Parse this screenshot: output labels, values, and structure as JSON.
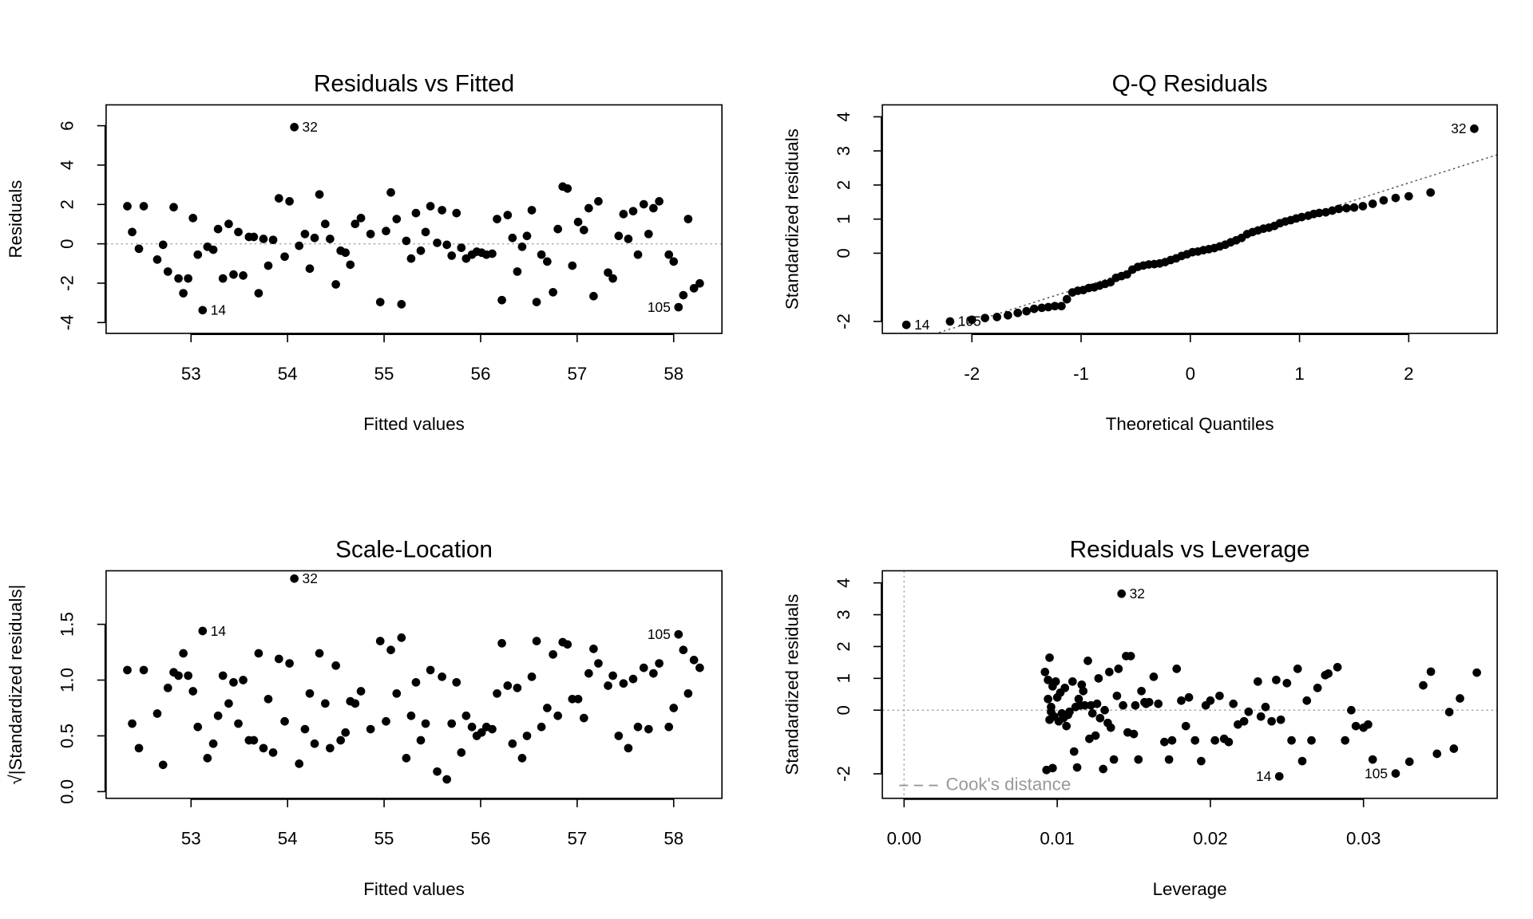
{
  "chart_data": [
    {
      "type": "scatter",
      "title": "Residuals vs Fitted",
      "x_label": "Fitted values",
      "y_label": "Residuals",
      "x": [
        52.34,
        52.39,
        52.46,
        52.51,
        52.65,
        52.71,
        52.76,
        52.82,
        52.87,
        52.92,
        52.97,
        53.02,
        53.07,
        53.12,
        53.17,
        53.23,
        53.28,
        53.33,
        53.39,
        53.44,
        53.49,
        53.54,
        53.6,
        53.65,
        53.7,
        53.75,
        53.8,
        53.85,
        53.91,
        53.97,
        54.02,
        54.07,
        54.12,
        54.18,
        54.23,
        54.28,
        54.33,
        54.39,
        54.44,
        54.5,
        54.55,
        54.6,
        54.65,
        54.7,
        54.76,
        54.86,
        54.96,
        55.02,
        55.07,
        55.13,
        55.18,
        55.23,
        55.28,
        55.33,
        55.38,
        55.43,
        55.48,
        55.55,
        55.6,
        55.65,
        55.7,
        55.75,
        55.8,
        55.85,
        55.91,
        55.96,
        56.01,
        56.06,
        56.12,
        56.17,
        56.22,
        56.28,
        56.33,
        56.38,
        56.43,
        56.48,
        56.53,
        56.58,
        56.63,
        56.69,
        56.75,
        56.8,
        56.85,
        56.9,
        56.95,
        57.01,
        57.07,
        57.12,
        57.17,
        57.22,
        57.32,
        57.37,
        57.43,
        57.48,
        57.53,
        57.58,
        57.63,
        57.69,
        57.74,
        57.79,
        57.85,
        57.95,
        58.0,
        58.05,
        58.1,
        58.15,
        58.21,
        58.27
      ],
      "y": [
        1.91,
        0.6,
        -0.25,
        1.91,
        -0.8,
        -0.05,
        -1.41,
        1.86,
        -1.76,
        -2.51,
        -1.76,
        1.31,
        -0.55,
        -3.37,
        -0.15,
        -0.3,
        0.75,
        -1.76,
        1.01,
        -1.56,
        0.6,
        -1.61,
        0.35,
        0.35,
        -2.51,
        0.25,
        -1.11,
        0.2,
        2.31,
        -0.65,
        2.16,
        5.93,
        -0.1,
        0.5,
        -1.26,
        0.3,
        2.51,
        1.01,
        0.25,
        -2.06,
        -0.35,
        -0.45,
        -1.06,
        1.01,
        1.31,
        0.5,
        -2.96,
        0.65,
        2.61,
        1.26,
        -3.07,
        0.15,
        -0.75,
        1.56,
        -0.35,
        0.6,
        1.91,
        0.05,
        1.71,
        -0.05,
        -0.6,
        1.56,
        -0.2,
        -0.75,
        -0.55,
        -0.4,
        -0.45,
        -0.55,
        -0.5,
        1.26,
        -2.86,
        1.46,
        0.3,
        -1.41,
        -0.15,
        0.4,
        1.71,
        -2.96,
        -0.55,
        -0.9,
        -2.46,
        0.75,
        2.91,
        2.81,
        -1.11,
        1.11,
        0.7,
        1.81,
        -2.66,
        2.16,
        -1.46,
        -1.76,
        0.4,
        1.51,
        0.25,
        1.66,
        -0.55,
        2.01,
        0.5,
        1.81,
        2.16,
        -0.55,
        -0.9,
        -3.22,
        -2.61,
        1.26,
        -2.26,
        -2.01
      ],
      "xlim": [
        52.12,
        58.5
      ],
      "ylim": [
        -4.55,
        7.06
      ],
      "xticks": [
        53,
        54,
        55,
        56,
        57,
        58
      ],
      "yticks": [
        -4,
        -2,
        0,
        2,
        4,
        6
      ],
      "reference_lines": [
        {
          "intercept": 0,
          "slope": 0,
          "color": "#aaaaaa"
        }
      ],
      "point_labels": [
        {
          "index": 31,
          "text": "32"
        },
        {
          "index": 13,
          "text": "14"
        },
        {
          "index": 103,
          "text": "105"
        }
      ]
    },
    {
      "type": "scatter",
      "title": "Q-Q Residuals",
      "x_label": "Theoretical Quantiles",
      "y_label": "Standardized residuals",
      "x": [
        -2.6,
        -2.2,
        -2.0,
        -1.88,
        -1.77,
        -1.67,
        -1.58,
        -1.5,
        -1.43,
        -1.36,
        -1.3,
        -1.24,
        -1.18,
        -1.13,
        -1.08,
        -1.03,
        -0.98,
        -0.93,
        -0.88,
        -0.83,
        -0.78,
        -0.73,
        -0.68,
        -0.63,
        -0.58,
        -0.53,
        -0.48,
        -0.43,
        -0.38,
        -0.33,
        -0.28,
        -0.23,
        -0.18,
        -0.13,
        -0.08,
        -0.03,
        0.02,
        0.07,
        0.12,
        0.17,
        0.22,
        0.27,
        0.32,
        0.37,
        0.42,
        0.47,
        0.52,
        0.57,
        0.62,
        0.67,
        0.72,
        0.77,
        0.82,
        0.87,
        0.92,
        0.97,
        1.02,
        1.08,
        1.13,
        1.18,
        1.24,
        1.3,
        1.36,
        1.43,
        1.5,
        1.58,
        1.67,
        1.77,
        1.88,
        2.0,
        2.2,
        2.6
      ],
      "y": [
        -2.1,
        -2.0,
        -1.95,
        -1.9,
        -1.87,
        -1.82,
        -1.75,
        -1.7,
        -1.63,
        -1.6,
        -1.58,
        -1.55,
        -1.55,
        -1.35,
        -1.15,
        -1.1,
        -1.08,
        -1.02,
        -1.0,
        -0.95,
        -0.9,
        -0.85,
        -0.72,
        -0.67,
        -0.62,
        -0.48,
        -0.4,
        -0.36,
        -0.33,
        -0.32,
        -0.3,
        -0.26,
        -0.2,
        -0.15,
        -0.08,
        -0.03,
        0.03,
        0.05,
        0.09,
        0.12,
        0.15,
        0.2,
        0.25,
        0.32,
        0.38,
        0.45,
        0.56,
        0.62,
        0.67,
        0.72,
        0.75,
        0.8,
        0.88,
        0.93,
        0.97,
        1.02,
        1.06,
        1.1,
        1.15,
        1.18,
        1.2,
        1.25,
        1.3,
        1.32,
        1.34,
        1.38,
        1.45,
        1.55,
        1.62,
        1.67,
        1.78,
        3.65
      ],
      "xlim": [
        -2.82,
        2.81
      ],
      "ylim": [
        -2.35,
        4.35
      ],
      "xticks": [
        -2,
        -1,
        0,
        1,
        2
      ],
      "yticks": [
        -2,
        0,
        1,
        2,
        3,
        4
      ],
      "reference_lines": [
        {
          "intercept": 0.02,
          "slope": 1.02,
          "color": "#555555"
        }
      ],
      "point_labels": [
        {
          "index": 71,
          "text": "32"
        },
        {
          "index": 0,
          "text": "14"
        },
        {
          "index": 1,
          "text": "105"
        }
      ]
    },
    {
      "type": "scatter",
      "title": "Scale-Location",
      "x_label": "Fitted values",
      "y_label": "√|Standardized residuals|",
      "x": [
        52.34,
        52.39,
        52.46,
        52.51,
        52.65,
        52.71,
        52.76,
        52.82,
        52.87,
        52.92,
        52.97,
        53.02,
        53.07,
        53.12,
        53.17,
        53.23,
        53.28,
        53.33,
        53.39,
        53.44,
        53.49,
        53.54,
        53.6,
        53.65,
        53.7,
        53.75,
        53.8,
        53.85,
        53.91,
        53.97,
        54.02,
        54.07,
        54.12,
        54.18,
        54.23,
        54.28,
        54.33,
        54.39,
        54.44,
        54.5,
        54.55,
        54.6,
        54.65,
        54.7,
        54.76,
        54.86,
        54.96,
        55.02,
        55.07,
        55.13,
        55.18,
        55.23,
        55.28,
        55.33,
        55.38,
        55.43,
        55.48,
        55.55,
        55.6,
        55.65,
        55.7,
        55.75,
        55.8,
        55.85,
        55.91,
        55.96,
        56.01,
        56.06,
        56.12,
        56.17,
        56.22,
        56.28,
        56.33,
        56.38,
        56.43,
        56.48,
        56.53,
        56.58,
        56.63,
        56.69,
        56.75,
        56.8,
        56.85,
        56.9,
        56.95,
        57.01,
        57.07,
        57.12,
        57.17,
        57.22,
        57.32,
        57.37,
        57.43,
        57.48,
        57.53,
        57.58,
        57.63,
        57.69,
        57.74,
        57.79,
        57.85,
        57.95,
        58.0,
        58.05,
        58.1,
        58.15,
        58.21,
        58.27
      ],
      "y": [
        1.09,
        0.61,
        0.39,
        1.09,
        0.7,
        0.24,
        0.93,
        1.07,
        1.04,
        1.24,
        1.04,
        0.9,
        0.58,
        1.44,
        0.3,
        0.43,
        0.68,
        1.04,
        0.79,
        0.98,
        0.61,
        1.0,
        0.46,
        0.46,
        1.24,
        0.39,
        0.83,
        0.35,
        1.19,
        0.63,
        1.15,
        1.91,
        0.25,
        0.56,
        0.88,
        0.43,
        1.24,
        0.79,
        0.39,
        1.13,
        0.46,
        0.53,
        0.81,
        0.79,
        0.9,
        0.56,
        1.35,
        0.63,
        1.27,
        0.88,
        1.38,
        0.3,
        0.68,
        0.98,
        0.46,
        0.61,
        1.09,
        0.18,
        1.03,
        0.11,
        0.61,
        0.98,
        0.35,
        0.68,
        0.58,
        0.5,
        0.53,
        0.58,
        0.56,
        0.88,
        1.33,
        0.95,
        0.43,
        0.93,
        0.3,
        0.5,
        1.03,
        1.35,
        0.58,
        0.75,
        1.23,
        0.68,
        1.34,
        1.32,
        0.83,
        0.83,
        0.66,
        1.06,
        1.28,
        1.15,
        0.95,
        1.04,
        0.5,
        0.97,
        0.39,
        1.01,
        0.58,
        1.11,
        0.56,
        1.06,
        1.15,
        0.58,
        0.75,
        1.41,
        1.27,
        0.88,
        1.18,
        1.11
      ],
      "xlim": [
        52.12,
        58.5
      ],
      "ylim": [
        -0.06,
        1.98
      ],
      "xticks": [
        53,
        54,
        55,
        56,
        57,
        58
      ],
      "yticks": [
        {
          "value": 0,
          "label": "0.0"
        },
        0.5,
        {
          "value": 1,
          "label": "1.0"
        },
        1.5
      ],
      "point_labels": [
        {
          "index": 31,
          "text": "32"
        },
        {
          "index": 13,
          "text": "14"
        },
        {
          "index": 103,
          "text": "105"
        }
      ]
    },
    {
      "type": "scatter",
      "title": "Residuals vs Leverage",
      "x_label": "Leverage",
      "y_label": "Standardized residuals",
      "x": [
        0.0092,
        0.0093,
        0.0094,
        0.0094,
        0.0095,
        0.0095,
        0.0096,
        0.0096,
        0.0097,
        0.0097,
        0.0098,
        0.0099,
        0.01,
        0.0101,
        0.0102,
        0.0103,
        0.0104,
        0.0105,
        0.0106,
        0.0107,
        0.0108,
        0.011,
        0.0111,
        0.0112,
        0.0113,
        0.0114,
        0.0115,
        0.0116,
        0.0117,
        0.0118,
        0.012,
        0.0121,
        0.0122,
        0.0123,
        0.0125,
        0.0126,
        0.0127,
        0.0128,
        0.013,
        0.0131,
        0.0133,
        0.0134,
        0.0135,
        0.0137,
        0.0139,
        0.014,
        0.0142,
        0.0143,
        0.0145,
        0.0146,
        0.0148,
        0.015,
        0.0151,
        0.0153,
        0.0155,
        0.0157,
        0.0158,
        0.016,
        0.0163,
        0.0166,
        0.017,
        0.0173,
        0.0175,
        0.0178,
        0.0181,
        0.0184,
        0.0186,
        0.019,
        0.0194,
        0.0197,
        0.02,
        0.0203,
        0.0206,
        0.0209,
        0.0212,
        0.0215,
        0.0218,
        0.0222,
        0.0225,
        0.0231,
        0.0233,
        0.0236,
        0.024,
        0.0243,
        0.0245,
        0.0246,
        0.025,
        0.0253,
        0.0257,
        0.026,
        0.0263,
        0.0266,
        0.027,
        0.0275,
        0.0277,
        0.0283,
        0.0288,
        0.0292,
        0.0295,
        0.03,
        0.0303,
        0.0306,
        0.0321,
        0.033,
        0.0339,
        0.0344,
        0.0348,
        0.0356,
        0.0359,
        0.0363,
        0.0374
      ],
      "y": [
        1.2,
        -1.88,
        0.95,
        0.35,
        -0.3,
        1.65,
        0.1,
        -0.05,
        0.75,
        -1.82,
        -0.2,
        0.9,
        0.4,
        -0.35,
        0.55,
        -0.1,
        -0.25,
        0.7,
        -0.5,
        -0.15,
        -0.05,
        0.9,
        -1.3,
        0.1,
        -1.8,
        0.35,
        0.15,
        0.8,
        0.6,
        0.15,
        1.55,
        -0.9,
        0.15,
        -0.1,
        -0.8,
        0.2,
        1.0,
        -0.25,
        -1.85,
        0.0,
        -0.4,
        1.2,
        -0.55,
        -1.55,
        0.45,
        1.3,
        3.66,
        0.15,
        1.7,
        -0.7,
        1.7,
        -0.75,
        0.15,
        -1.55,
        0.6,
        0.25,
        0.2,
        0.25,
        1.05,
        0.2,
        -1.0,
        -1.55,
        -0.95,
        1.3,
        0.3,
        -0.5,
        0.4,
        -0.95,
        -1.6,
        0.15,
        0.3,
        -0.95,
        0.45,
        -0.9,
        -1.0,
        0.2,
        -0.45,
        -0.35,
        -0.05,
        0.9,
        -0.2,
        0.1,
        -0.35,
        0.95,
        -2.08,
        -0.3,
        0.85,
        -0.95,
        1.3,
        -1.6,
        0.3,
        -0.95,
        0.7,
        1.1,
        1.15,
        1.35,
        -0.95,
        0.0,
        -0.5,
        -0.55,
        -0.45,
        -1.55,
        -1.99,
        -1.62,
        0.78,
        1.21,
        -1.37,
        -0.06,
        -1.21,
        0.37,
        1.18
      ],
      "xlim": [
        -0.00142,
        0.03873
      ],
      "ylim": [
        -2.77,
        4.38
      ],
      "xticks": [
        {
          "value": 0,
          "label": "0.00"
        },
        {
          "value": 0.01,
          "label": "0.01"
        },
        {
          "value": 0.02,
          "label": "0.02"
        },
        {
          "value": 0.03,
          "label": "0.03"
        }
      ],
      "yticks": [
        -2,
        0,
        1,
        2,
        3,
        4
      ],
      "reference_lines": [
        {
          "intercept": 0,
          "slope": 0,
          "color": "#aaaaaa"
        },
        {
          "x": 0,
          "color": "#aaaaaa"
        }
      ],
      "legend": {
        "text": "Cook's distance",
        "position": "bottomleft",
        "color": "#999999"
      },
      "point_labels": [
        {
          "index": 46,
          "text": "32"
        },
        {
          "index": 84,
          "text": "14"
        },
        {
          "index": 102,
          "text": "105"
        }
      ]
    }
  ]
}
